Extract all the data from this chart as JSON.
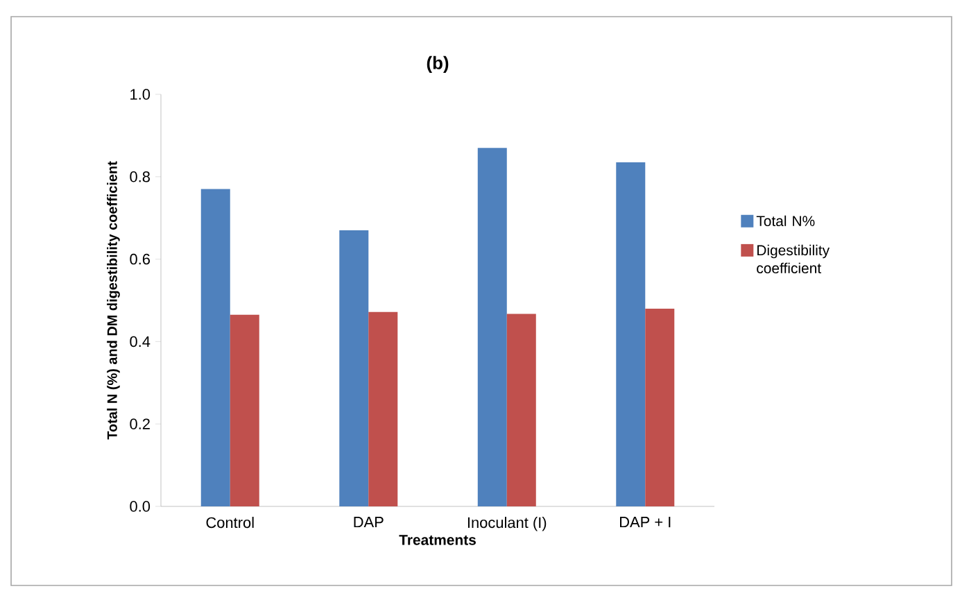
{
  "chart_data": {
    "type": "bar",
    "title": "(b)",
    "xlabel": "Treatments",
    "ylabel": "Total N (%) and DM digestibility coefficient",
    "categories": [
      "Control",
      "DAP",
      "Inoculant (I)",
      "DAP + I"
    ],
    "series": [
      {
        "name": "Total N%",
        "color": "#4f81bd",
        "values": [
          0.77,
          0.67,
          0.87,
          0.835
        ]
      },
      {
        "name": "Digestibility coefficient",
        "color": "#c0504d",
        "values": [
          0.465,
          0.472,
          0.467,
          0.48
        ]
      }
    ],
    "ylim": [
      0,
      1.0
    ],
    "yticks": [
      {
        "value": 0,
        "label": "0.0"
      },
      {
        "value": 0.2,
        "label": "0.2"
      },
      {
        "value": 0.4,
        "label": "0.4"
      },
      {
        "value": 0.6,
        "label": "0.6"
      },
      {
        "value": 0.8,
        "label": "0.8"
      },
      {
        "value": 1.0,
        "label": "1.0"
      }
    ],
    "grid": false,
    "legend": "right"
  }
}
